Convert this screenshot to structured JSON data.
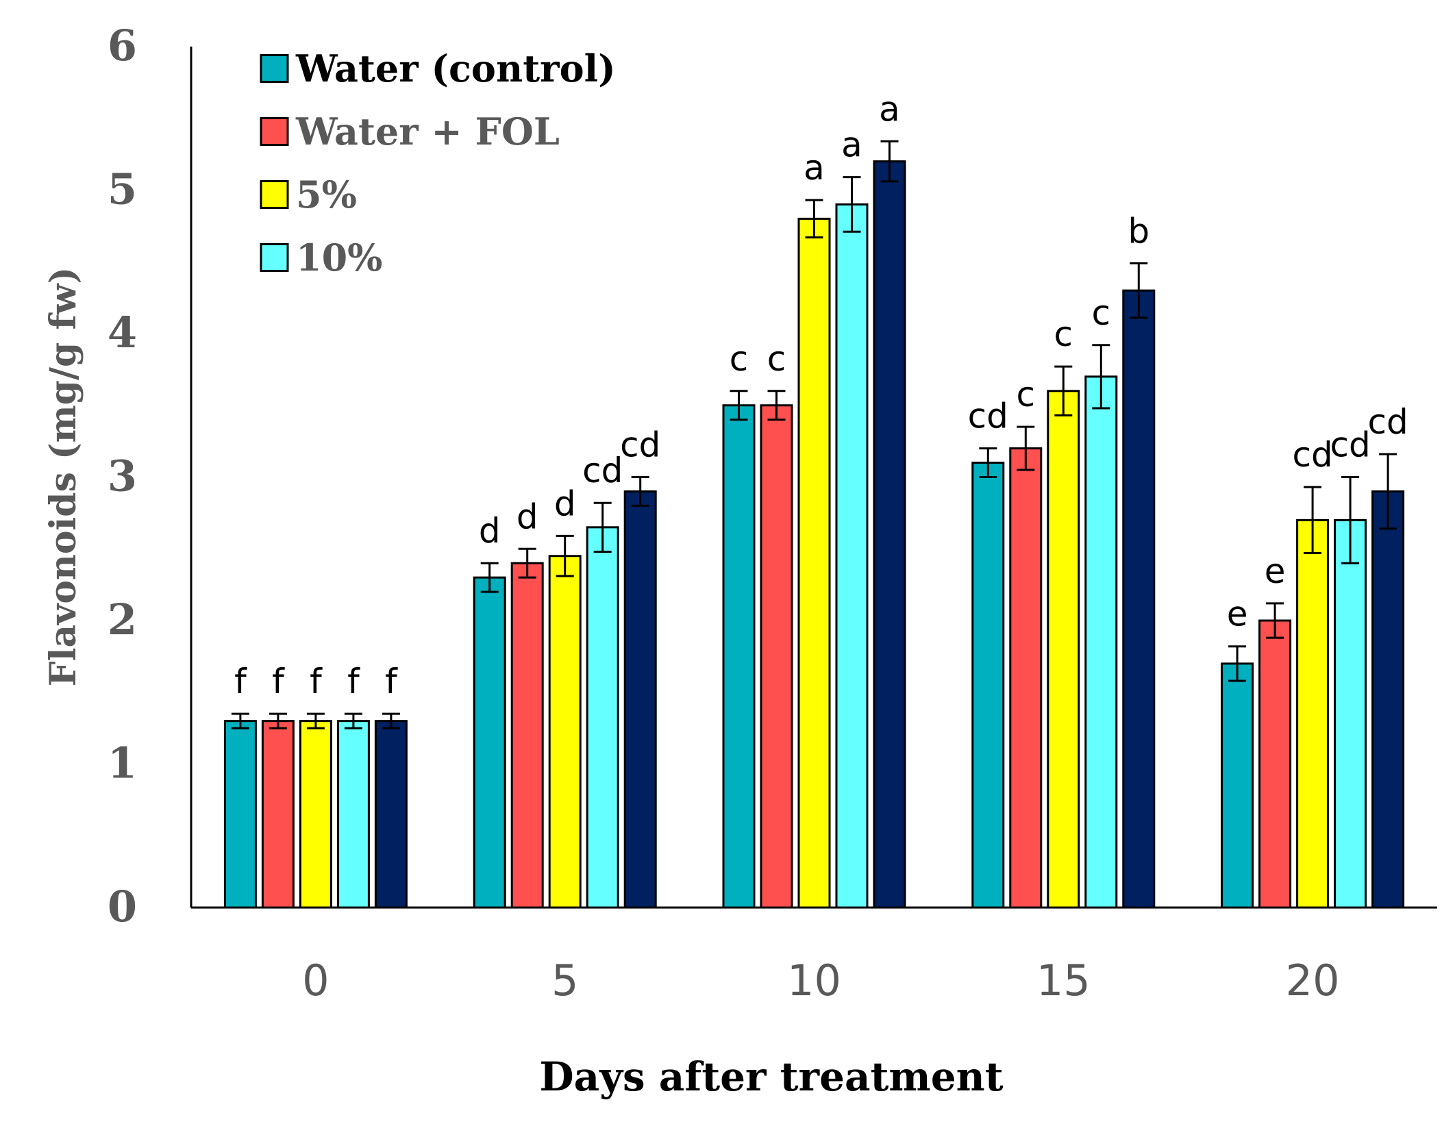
{
  "chart_data": {
    "type": "bar",
    "title": "",
    "xlabel": "Days after treatment",
    "ylabel": "Flavonoids (mg/g fw)",
    "categories": [
      "0",
      "5",
      "10",
      "15",
      "20"
    ],
    "yticks": [
      "0",
      "1",
      "2",
      "3",
      "4",
      "5",
      "6"
    ],
    "ylim": [
      0,
      6
    ],
    "grid": false,
    "legend_position": "top-left",
    "series": [
      {
        "name": "Water (control)",
        "color": "#00B0BE",
        "legend_text_color": "#000000",
        "values": [
          1.3,
          2.3,
          3.5,
          3.1,
          1.7
        ],
        "errors": [
          0.05,
          0.1,
          0.1,
          0.1,
          0.12
        ],
        "sig": [
          "f",
          "d",
          "c",
          "cd",
          "e"
        ]
      },
      {
        "name": "Water + FOL",
        "color": "#FF5050",
        "legend_text_color": "#595959",
        "values": [
          1.3,
          2.4,
          3.5,
          3.2,
          2.0
        ],
        "errors": [
          0.05,
          0.1,
          0.1,
          0.15,
          0.12
        ],
        "sig": [
          "f",
          "d",
          "c",
          "c",
          "e"
        ]
      },
      {
        "name": "5%",
        "color": "#FFFF00",
        "legend_text_color": "#595959",
        "values": [
          1.3,
          2.45,
          4.8,
          3.6,
          2.7
        ],
        "errors": [
          0.05,
          0.14,
          0.13,
          0.17,
          0.23
        ],
        "sig": [
          "f",
          "d",
          "a",
          "c",
          "cd"
        ]
      },
      {
        "name": "10%",
        "color": "#66FFFF",
        "legend_text_color": "#595959",
        "values": [
          1.3,
          2.65,
          4.9,
          3.7,
          2.7
        ],
        "errors": [
          0.05,
          0.17,
          0.19,
          0.22,
          0.3
        ],
        "sig": [
          "f",
          "cd",
          "a",
          "c",
          "cd"
        ]
      },
      {
        "name": "",
        "color": "#002060",
        "legend_text_color": "#595959",
        "values": [
          1.3,
          2.9,
          5.2,
          4.3,
          2.9
        ],
        "errors": [
          0.05,
          0.1,
          0.14,
          0.19,
          0.26
        ],
        "sig": [
          "f",
          "cd",
          "a",
          "b",
          "cd"
        ]
      }
    ]
  }
}
